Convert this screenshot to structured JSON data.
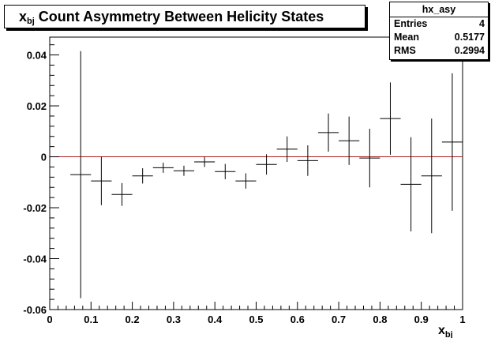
{
  "chart_data": {
    "type": "scatter",
    "title_main": "x",
    "title_sub": "bj",
    "title_rest": " Count Asymmetry Between Helicity States",
    "xlabel_main": "x",
    "xlabel_sub": "bj",
    "ylabel": "",
    "xlim": [
      0,
      1
    ],
    "ylim": [
      -0.06,
      0.047
    ],
    "x_ticks": [
      {
        "value": 0,
        "label": "0"
      },
      {
        "value": 0.1,
        "label": "0.1"
      },
      {
        "value": 0.2,
        "label": "0.2"
      },
      {
        "value": 0.3,
        "label": "0.3"
      },
      {
        "value": 0.4,
        "label": "0.4"
      },
      {
        "value": 0.5,
        "label": "0.5"
      },
      {
        "value": 0.6,
        "label": "0.6"
      },
      {
        "value": 0.7,
        "label": "0.7"
      },
      {
        "value": 0.8,
        "label": "0.8"
      },
      {
        "value": 0.9,
        "label": "0.9"
      },
      {
        "value": 1,
        "label": "1"
      }
    ],
    "y_ticks": [
      {
        "value": 0.04,
        "label": "0.04"
      },
      {
        "value": 0.02,
        "label": "0.02"
      },
      {
        "value": 0,
        "label": "0"
      },
      {
        "value": -0.02,
        "label": "-0.02"
      },
      {
        "value": -0.04,
        "label": "-0.04"
      },
      {
        "value": -0.06,
        "label": "-0.06"
      }
    ],
    "bin_width": 0.05,
    "points": [
      {
        "x": 0.075,
        "y": -0.007,
        "err": 0.0485
      },
      {
        "x": 0.125,
        "y": -0.0095,
        "err": 0.0095
      },
      {
        "x": 0.175,
        "y": -0.0148,
        "err": 0.0045
      },
      {
        "x": 0.225,
        "y": -0.0075,
        "err": 0.003
      },
      {
        "x": 0.275,
        "y": -0.0043,
        "err": 0.002
      },
      {
        "x": 0.325,
        "y": -0.0055,
        "err": 0.002
      },
      {
        "x": 0.375,
        "y": -0.002,
        "err": 0.002
      },
      {
        "x": 0.425,
        "y": -0.0058,
        "err": 0.003
      },
      {
        "x": 0.475,
        "y": -0.0095,
        "err": 0.003
      },
      {
        "x": 0.525,
        "y": -0.003,
        "err": 0.004
      },
      {
        "x": 0.575,
        "y": 0.003,
        "err": 0.005
      },
      {
        "x": 0.625,
        "y": -0.0015,
        "err": 0.006
      },
      {
        "x": 0.675,
        "y": 0.0095,
        "err": 0.0075
      },
      {
        "x": 0.725,
        "y": 0.0063,
        "err": 0.0095
      },
      {
        "x": 0.775,
        "y": -0.0005,
        "err": 0.0115
      },
      {
        "x": 0.825,
        "y": 0.015,
        "err": 0.0142
      },
      {
        "x": 0.875,
        "y": -0.0108,
        "err": 0.0185
      },
      {
        "x": 0.925,
        "y": -0.0075,
        "err": 0.0225
      },
      {
        "x": 0.975,
        "y": 0.0058,
        "err": 0.027
      }
    ],
    "reference_line": {
      "y": 0,
      "color": "#ff0000"
    },
    "marker_color": "#000000",
    "grid": false,
    "legend": "none"
  },
  "stats": {
    "name": "hx_asy",
    "entries_label": "Entries",
    "entries_value": "4",
    "mean_label": "Mean",
    "mean_value": "0.5177",
    "rms_label": "RMS",
    "rms_value": "0.2994"
  }
}
